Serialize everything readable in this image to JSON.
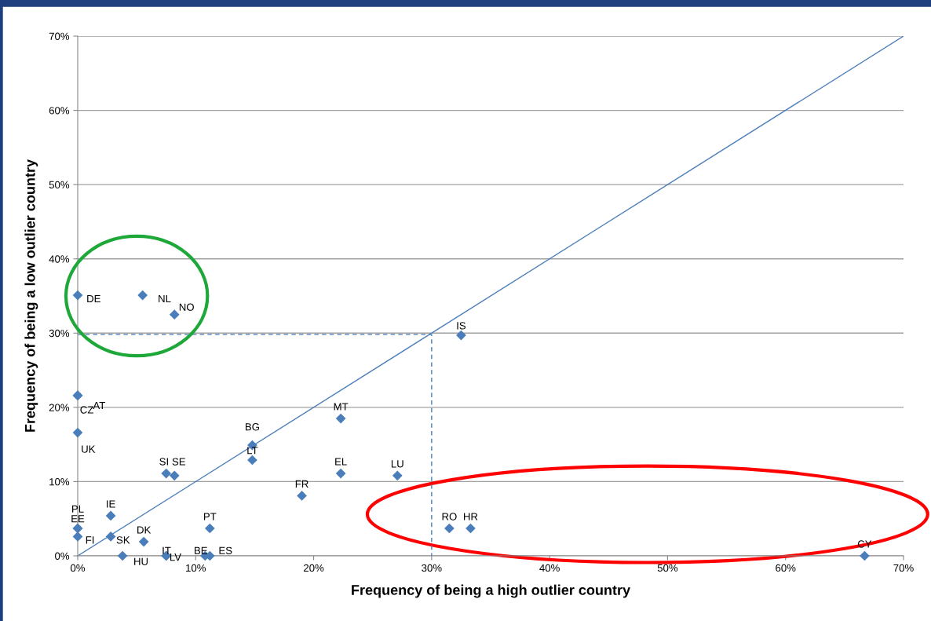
{
  "chart_data": {
    "type": "scatter",
    "xlabel": "Frequency of being a high outlier country",
    "ylabel": "Frequency of being a low outlier country",
    "xlim": [
      0,
      70
    ],
    "ylim": [
      0,
      70
    ],
    "xticks": [
      {
        "value": 0,
        "label": "0%"
      },
      {
        "value": 10,
        "label": "10%"
      },
      {
        "value": 20,
        "label": "20%"
      },
      {
        "value": 30,
        "label": "30%"
      },
      {
        "value": 40,
        "label": "40%"
      },
      {
        "value": 50,
        "label": "50%"
      },
      {
        "value": 60,
        "label": "60%"
      },
      {
        "value": 70,
        "label": "70%"
      }
    ],
    "yticks": [
      {
        "value": 0,
        "label": "0%"
      },
      {
        "value": 10,
        "label": "10%"
      },
      {
        "value": 20,
        "label": "20%"
      },
      {
        "value": 30,
        "label": "30%"
      },
      {
        "value": 40,
        "label": "40%"
      },
      {
        "value": 50,
        "label": "50%"
      },
      {
        "value": 60,
        "label": "60%"
      },
      {
        "value": 70,
        "label": "70%"
      }
    ],
    "grid": "y",
    "series": [
      {
        "type": "line",
        "color": "#4a7ebb",
        "line_style": "solid",
        "marker": "none",
        "x": [
          0,
          70
        ],
        "values": [
          0,
          70
        ]
      },
      {
        "type": "line",
        "color": "#4a7ebb",
        "line_style": "dashed",
        "marker": "none",
        "x": [
          0,
          30,
          30
        ],
        "values": [
          29.8,
          29.8,
          0
        ]
      },
      {
        "color": "#4a7ebb",
        "marker": "diamond",
        "x": [
          0,
          5.5,
          8.2,
          32.5,
          0,
          0,
          0,
          14.8,
          14.8,
          22.3,
          7.5,
          8.2,
          22.3,
          27.1,
          19.0,
          2.8,
          0,
          0,
          0,
          2.8,
          5.6,
          3.8,
          7.5,
          7.5,
          10.8,
          11.2,
          11.2,
          31.5,
          33.3,
          66.7
        ],
        "values": [
          35.1,
          35.1,
          32.5,
          29.7,
          21.6,
          21.6,
          16.6,
          14.9,
          12.9,
          18.5,
          11.1,
          10.8,
          11.1,
          10.8,
          8.1,
          5.4,
          3.7,
          3.7,
          2.6,
          2.6,
          1.9,
          0,
          0,
          0,
          0,
          0,
          3.7,
          3.7,
          3.7,
          0
        ]
      }
    ],
    "annotations": [
      {
        "text": "DE",
        "x": 0,
        "y": 35.1
      },
      {
        "text": "NL",
        "x": 5.5,
        "y": 35.1
      },
      {
        "text": "NO",
        "x": 8.2,
        "y": 32.5
      },
      {
        "text": "IS",
        "x": 32.5,
        "y": 29.7
      },
      {
        "text": "CZ",
        "x": 0,
        "y": 21.6
      },
      {
        "text": "AT",
        "x": 0,
        "y": 21.6
      },
      {
        "text": "UK",
        "x": 0,
        "y": 16.6
      },
      {
        "text": "BG",
        "x": 14.8,
        "y": 14.9
      },
      {
        "text": "LT",
        "x": 14.8,
        "y": 12.9
      },
      {
        "text": "MT",
        "x": 22.3,
        "y": 18.5
      },
      {
        "text": "SI",
        "x": 7.5,
        "y": 11.1
      },
      {
        "text": "SE",
        "x": 8.2,
        "y": 10.8
      },
      {
        "text": "EL",
        "x": 22.3,
        "y": 11.1
      },
      {
        "text": "LU",
        "x": 27.1,
        "y": 10.8
      },
      {
        "text": "FR",
        "x": 19.0,
        "y": 8.1
      },
      {
        "text": "IE",
        "x": 2.8,
        "y": 5.4
      },
      {
        "text": "PL",
        "x": 0,
        "y": 3.7
      },
      {
        "text": "EE",
        "x": 0,
        "y": 3.7
      },
      {
        "text": "FI",
        "x": 0,
        "y": 2.6
      },
      {
        "text": "SK",
        "x": 2.8,
        "y": 2.6
      },
      {
        "text": "DK",
        "x": 5.6,
        "y": 1.9
      },
      {
        "text": "HU",
        "x": 3.8,
        "y": 0
      },
      {
        "text": "IT",
        "x": 7.5,
        "y": 0
      },
      {
        "text": "LV",
        "x": 7.5,
        "y": 0
      },
      {
        "text": "BE",
        "x": 10.8,
        "y": 0
      },
      {
        "text": "ES",
        "x": 11.2,
        "y": 0
      },
      {
        "text": "PT",
        "x": 11.2,
        "y": 3.7
      },
      {
        "text": "RO",
        "x": 31.5,
        "y": 3.7
      },
      {
        "text": "HR",
        "x": 33.3,
        "y": 3.7
      },
      {
        "text": "CY",
        "x": 66.7,
        "y": 0
      }
    ]
  }
}
